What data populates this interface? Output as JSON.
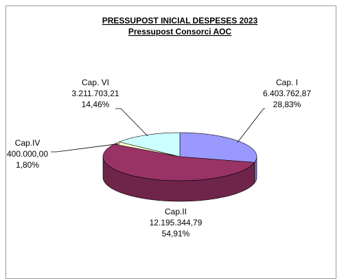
{
  "chart_data": {
    "type": "pie3d",
    "title": "PRESSUPOST INICIAL  DESPESES 2023",
    "subtitle": "Pressupost Consorci AOC",
    "categories": [
      "Cap. I",
      "Cap.II",
      "Cap.IV",
      "Cap. VI"
    ],
    "values": [
      6403762.87,
      12195344.79,
      400000.0,
      3211703.21
    ],
    "value_labels": [
      "6.403.762,87",
      "12.195.344,79",
      "400.000,00",
      "3.211.703,21"
    ],
    "percentages": [
      28.83,
      54.91,
      1.8,
      14.46
    ],
    "percentage_labels": [
      "28,83%",
      "54,91%",
      "1,80%",
      "14,46%"
    ],
    "colors": [
      "#9999ff",
      "#993366",
      "#ffffcc",
      "#ccffff"
    ]
  }
}
